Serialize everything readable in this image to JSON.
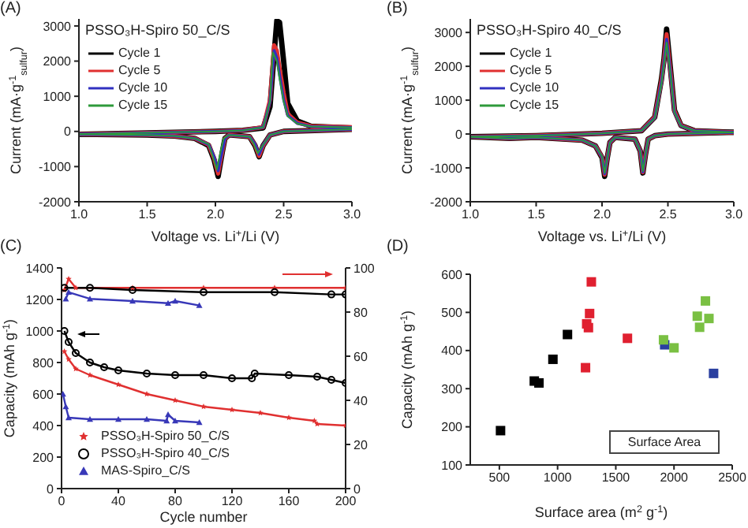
{
  "chart_data": [
    {
      "type": "line",
      "title": "PSSO₃H-Spiro 50_C/S",
      "xlabel": "Voltage vs. Li$^{+}$/Li (V)",
      "ylabel": "Current (mA·g$^{-1}$$_{sulfur}$)",
      "annotations": [
        "(A)"
      ],
      "xlim": [
        1.0,
        3.0
      ],
      "xticks": [
        {
          "value": 1,
          "label": "1.0"
        },
        1.5,
        {
          "value": 2,
          "label": "2.0"
        },
        2.5,
        {
          "value": 3,
          "label": "3.0"
        }
      ],
      "ylim": [
        -2000,
        3200
      ],
      "yticks": [
        -2000,
        -1000,
        0,
        1000,
        2000,
        3000
      ],
      "legend": "top left",
      "grid": false,
      "series": [
        {
          "name": "Cycle 1",
          "color": "#000000",
          "x": [
            1.0,
            1.5,
            2.0,
            2.2,
            2.35,
            2.4,
            2.43,
            2.45,
            2.47,
            2.5,
            2.53,
            2.6,
            2.7,
            3.0
          ],
          "values": [
            -80,
            -40,
            0,
            30,
            100,
            700,
            2200,
            3150,
            3100,
            2000,
            800,
            300,
            150,
            100
          ]
        },
        {
          "color": "#000000",
          "x": [
            1.0,
            1.5,
            1.7,
            1.85,
            1.95,
            1.99,
            2.02,
            2.05,
            2.07,
            2.1,
            2.25,
            2.29,
            2.32,
            2.35,
            2.4,
            2.5,
            3.0
          ],
          "values": [
            -80,
            -100,
            -130,
            -200,
            -400,
            -800,
            -1280,
            -600,
            -200,
            -100,
            -150,
            -400,
            -720,
            -400,
            -100,
            0,
            60
          ]
        },
        {
          "name": "Cycle 5",
          "color": "#e03030",
          "x": [
            1.0,
            1.5,
            2.0,
            2.2,
            2.35,
            2.4,
            2.43,
            2.45,
            2.47,
            2.5,
            2.53,
            2.6,
            2.7,
            3.0
          ],
          "values": [
            -80,
            -40,
            0,
            30,
            120,
            900,
            2450,
            2300,
            1800,
            1100,
            500,
            250,
            150,
            120
          ]
        },
        {
          "color": "#e03030",
          "x": [
            1.0,
            1.5,
            1.7,
            1.85,
            1.95,
            1.99,
            2.02,
            2.05,
            2.07,
            2.1,
            2.25,
            2.29,
            2.32,
            2.35,
            2.4,
            2.5,
            3.0
          ],
          "values": [
            -80,
            -100,
            -130,
            -200,
            -380,
            -760,
            -1200,
            -580,
            -200,
            -100,
            -150,
            -380,
            -700,
            -400,
            -100,
            0,
            60
          ]
        },
        {
          "name": "Cycle 10",
          "color": "#3030c0",
          "x": [
            1.0,
            1.5,
            2.0,
            2.2,
            2.35,
            2.4,
            2.43,
            2.45,
            2.47,
            2.5,
            2.53,
            2.6,
            2.7,
            3.0
          ],
          "values": [
            -80,
            -40,
            0,
            30,
            120,
            850,
            2300,
            2100,
            1600,
            900,
            450,
            230,
            140,
            110
          ]
        },
        {
          "color": "#3030c0",
          "x": [
            1.0,
            1.5,
            1.7,
            1.85,
            1.95,
            1.99,
            2.02,
            2.05,
            2.07,
            2.1,
            2.25,
            2.29,
            2.32,
            2.35,
            2.4,
            2.5,
            3.0
          ],
          "values": [
            -80,
            -100,
            -130,
            -200,
            -370,
            -720,
            -1120,
            -560,
            -200,
            -100,
            -150,
            -360,
            -650,
            -380,
            -100,
            0,
            60
          ]
        },
        {
          "name": "Cycle 15",
          "color": "#2e9a3a",
          "x": [
            1.0,
            1.5,
            2.0,
            2.2,
            2.35,
            2.4,
            2.42,
            2.45,
            2.47,
            2.5,
            2.53,
            2.6,
            2.7,
            3.0
          ],
          "values": [
            -80,
            -40,
            0,
            30,
            120,
            850,
            2250,
            2000,
            1500,
            850,
            430,
            220,
            140,
            110
          ]
        },
        {
          "color": "#2e9a3a",
          "x": [
            1.0,
            1.5,
            1.7,
            1.85,
            1.95,
            1.98,
            2.01,
            2.04,
            2.06,
            2.1,
            2.25,
            2.28,
            2.31,
            2.35,
            2.4,
            2.5,
            3.0
          ],
          "values": [
            -80,
            -100,
            -130,
            -200,
            -360,
            -700,
            -1080,
            -540,
            -200,
            -100,
            -150,
            -340,
            -620,
            -380,
            -100,
            0,
            60
          ]
        }
      ]
    },
    {
      "type": "line",
      "title": "PSSO₃H-Spiro 40_C/S",
      "xlabel": "Voltage vs. Li$^{+}$/Li (V)",
      "ylabel": "Current (mA·g$^{-1}$$_{sulfur}$)",
      "annotations": [
        "(B)"
      ],
      "xlim": [
        1.0,
        3.0
      ],
      "xticks": [
        {
          "value": 1,
          "label": "1.0"
        },
        1.5,
        {
          "value": 2,
          "label": "2.0"
        },
        2.5,
        {
          "value": 3,
          "label": "3.0"
        }
      ],
      "ylim": [
        -2000,
        3400
      ],
      "yticks": [
        -2000,
        -1000,
        0,
        1000,
        2000,
        3000
      ],
      "legend": "top left",
      "grid": false,
      "series": [
        {
          "name": "Cycle 1",
          "color": "#000000",
          "x": [
            1.0,
            1.5,
            2.0,
            2.3,
            2.4,
            2.45,
            2.47,
            2.49,
            2.51,
            2.55,
            2.6,
            2.7,
            3.0
          ],
          "values": [
            -80,
            -50,
            20,
            100,
            500,
            1600,
            2200,
            3100,
            2300,
            700,
            250,
            100,
            50
          ]
        },
        {
          "color": "#000000",
          "x": [
            1.0,
            1.3,
            1.5,
            1.85,
            1.95,
            2.0,
            2.02,
            2.04,
            2.06,
            2.1,
            2.25,
            2.29,
            2.31,
            2.33,
            2.35,
            2.4,
            2.5,
            3.0
          ],
          "values": [
            -80,
            -130,
            -100,
            -180,
            -350,
            -700,
            -1250,
            -700,
            -250,
            -100,
            -150,
            -500,
            -1150,
            -600,
            -150,
            -50,
            0,
            50
          ]
        },
        {
          "name": "Cycle 5",
          "color": "#e03030",
          "x": [
            1.0,
            1.5,
            2.0,
            2.3,
            2.4,
            2.45,
            2.47,
            2.49,
            2.51,
            2.55,
            2.6,
            2.7,
            3.0
          ],
          "values": [
            -80,
            -50,
            20,
            100,
            500,
            1550,
            2150,
            2950,
            2200,
            680,
            250,
            100,
            50
          ]
        },
        {
          "color": "#e03030",
          "x": [
            1.0,
            1.3,
            1.5,
            1.85,
            1.95,
            2.0,
            2.02,
            2.04,
            2.06,
            2.1,
            2.25,
            2.29,
            2.31,
            2.33,
            2.35,
            2.4,
            2.5,
            3.0
          ],
          "values": [
            -80,
            -130,
            -100,
            -180,
            -350,
            -680,
            -1200,
            -700,
            -250,
            -100,
            -150,
            -500,
            -1130,
            -600,
            -150,
            -50,
            0,
            50
          ]
        },
        {
          "name": "Cycle 10",
          "color": "#3030c0",
          "x": [
            1.0,
            1.5,
            2.0,
            2.3,
            2.4,
            2.45,
            2.47,
            2.49,
            2.51,
            2.55,
            2.6,
            2.7,
            3.0
          ],
          "values": [
            -80,
            -50,
            20,
            100,
            480,
            1500,
            2100,
            2800,
            2150,
            650,
            240,
            100,
            50
          ]
        },
        {
          "color": "#3030c0",
          "x": [
            1.0,
            1.3,
            1.5,
            1.85,
            1.95,
            2.0,
            2.02,
            2.04,
            2.06,
            2.1,
            2.25,
            2.29,
            2.31,
            2.33,
            2.35,
            2.4,
            2.5,
            3.0
          ],
          "values": [
            -80,
            -130,
            -100,
            -180,
            -350,
            -680,
            -1180,
            -700,
            -250,
            -100,
            -150,
            -500,
            -1120,
            -600,
            -150,
            -50,
            0,
            50
          ]
        },
        {
          "name": "Cycle 15",
          "color": "#2e9a3a",
          "x": [
            1.0,
            1.5,
            2.0,
            2.3,
            2.4,
            2.45,
            2.47,
            2.49,
            2.51,
            2.55,
            2.6,
            2.7,
            3.0
          ],
          "values": [
            -80,
            -50,
            20,
            100,
            470,
            1450,
            2050,
            2700,
            2100,
            640,
            240,
            100,
            50
          ]
        },
        {
          "color": "#2e9a3a",
          "x": [
            1.0,
            1.3,
            1.5,
            1.85,
            1.95,
            2.0,
            2.02,
            2.04,
            2.06,
            2.1,
            2.25,
            2.29,
            2.31,
            2.33,
            2.35,
            2.4,
            2.5,
            3.0
          ],
          "values": [
            -80,
            -130,
            -100,
            -180,
            -350,
            -660,
            -1150,
            -700,
            -250,
            -100,
            -150,
            -500,
            -1100,
            -600,
            -150,
            -50,
            0,
            50
          ]
        }
      ]
    },
    {
      "type": "line",
      "xlabel": "Cycle number",
      "ylabel": "Capacity (mAh g$^{-1}$)",
      "annotations": [
        "(C)"
      ],
      "xlim": [
        0,
        200
      ],
      "xticks": [
        0,
        40,
        80,
        120,
        160,
        200
      ],
      "ylim": [
        0,
        1400
      ],
      "yticks": [
        0,
        200,
        400,
        600,
        800,
        1000,
        1200,
        1400
      ],
      "y2lim": [
        0,
        100
      ],
      "y2ticks": [
        0,
        20,
        40,
        60,
        80,
        100
      ],
      "legend": "bottom left",
      "grid": false,
      "series": [
        {
          "name": "PSSO₃H-Spiro 50_C/S",
          "color": "#e03030",
          "marker": "star",
          "x": [
            2,
            5,
            10,
            20,
            40,
            60,
            80,
            100,
            120,
            140,
            160,
            178,
            180,
            200
          ],
          "values": [
            870,
            820,
            760,
            720,
            660,
            600,
            560,
            520,
            500,
            480,
            450,
            430,
            410,
            400
          ]
        },
        {
          "name": "PSSO₃H-Spiro 40_C/S",
          "color": "#000000",
          "marker": "circle",
          "x": [
            2,
            5,
            10,
            20,
            30,
            40,
            60,
            80,
            100,
            120,
            134,
            136,
            160,
            180,
            190,
            200
          ],
          "values": [
            1000,
            930,
            860,
            800,
            770,
            750,
            730,
            720,
            720,
            700,
            700,
            730,
            720,
            710,
            690,
            670
          ]
        },
        {
          "name": "MAS-Spiro_C/S",
          "color": "#3838b8",
          "marker": "triangle",
          "x": [
            1,
            3,
            5,
            20,
            40,
            60,
            74,
            75,
            80,
            97
          ],
          "values": [
            600,
            520,
            450,
            440,
            440,
            440,
            430,
            470,
            430,
            420
          ]
        },
        {
          "color": "#e03030",
          "marker": "star",
          "axis": "y2",
          "x": [
            2,
            5,
            10,
            50,
            100,
            150,
            200
          ],
          "values": [
            90,
            95,
            91,
            91,
            91,
            91,
            91
          ]
        },
        {
          "color": "#000000",
          "marker": "circle",
          "axis": "y2",
          "x": [
            2,
            20,
            50,
            100,
            150,
            190,
            200
          ],
          "values": [
            91,
            91,
            90,
            89,
            89,
            88,
            88
          ]
        },
        {
          "color": "#3838b8",
          "marker": "triangle",
          "axis": "y2",
          "x": [
            3,
            5,
            20,
            50,
            75,
            80,
            97
          ],
          "values": [
            86,
            89,
            86,
            85,
            84,
            85,
            83
          ]
        }
      ]
    },
    {
      "type": "scatter",
      "xlabel": "Surface area (m$^{2}$ g$^{-1}$)",
      "ylabel": "Capacity (mAh g$^{-1}$)",
      "annotations": [
        "(D)",
        "Surface Area"
      ],
      "xlim": [
        250,
        2500
      ],
      "xticks": [
        500,
        1000,
        1500,
        2000,
        2500
      ],
      "ylim": [
        100,
        600
      ],
      "yticks": [
        100,
        200,
        300,
        400,
        500,
        600
      ],
      "marker": "square",
      "grid": false,
      "series": [
        {
          "color": "#000000",
          "x": [
            510,
            800,
            840,
            960,
            1085
          ],
          "values": [
            190,
            320,
            315,
            377,
            442
          ]
        },
        {
          "color": "#e02030",
          "x": [
            1240,
            1250,
            1265,
            1275,
            1290,
            1600
          ],
          "values": [
            355,
            470,
            460,
            497,
            580,
            432
          ]
        },
        {
          "color": "#2a3fa0",
          "x": [
            1920,
            2340
          ],
          "values": [
            415,
            340
          ]
        },
        {
          "color": "#7ac043",
          "x": [
            1910,
            2000,
            2200,
            2220,
            2270,
            2300
          ],
          "values": [
            428,
            407,
            490,
            461,
            530,
            484
          ]
        }
      ]
    }
  ]
}
